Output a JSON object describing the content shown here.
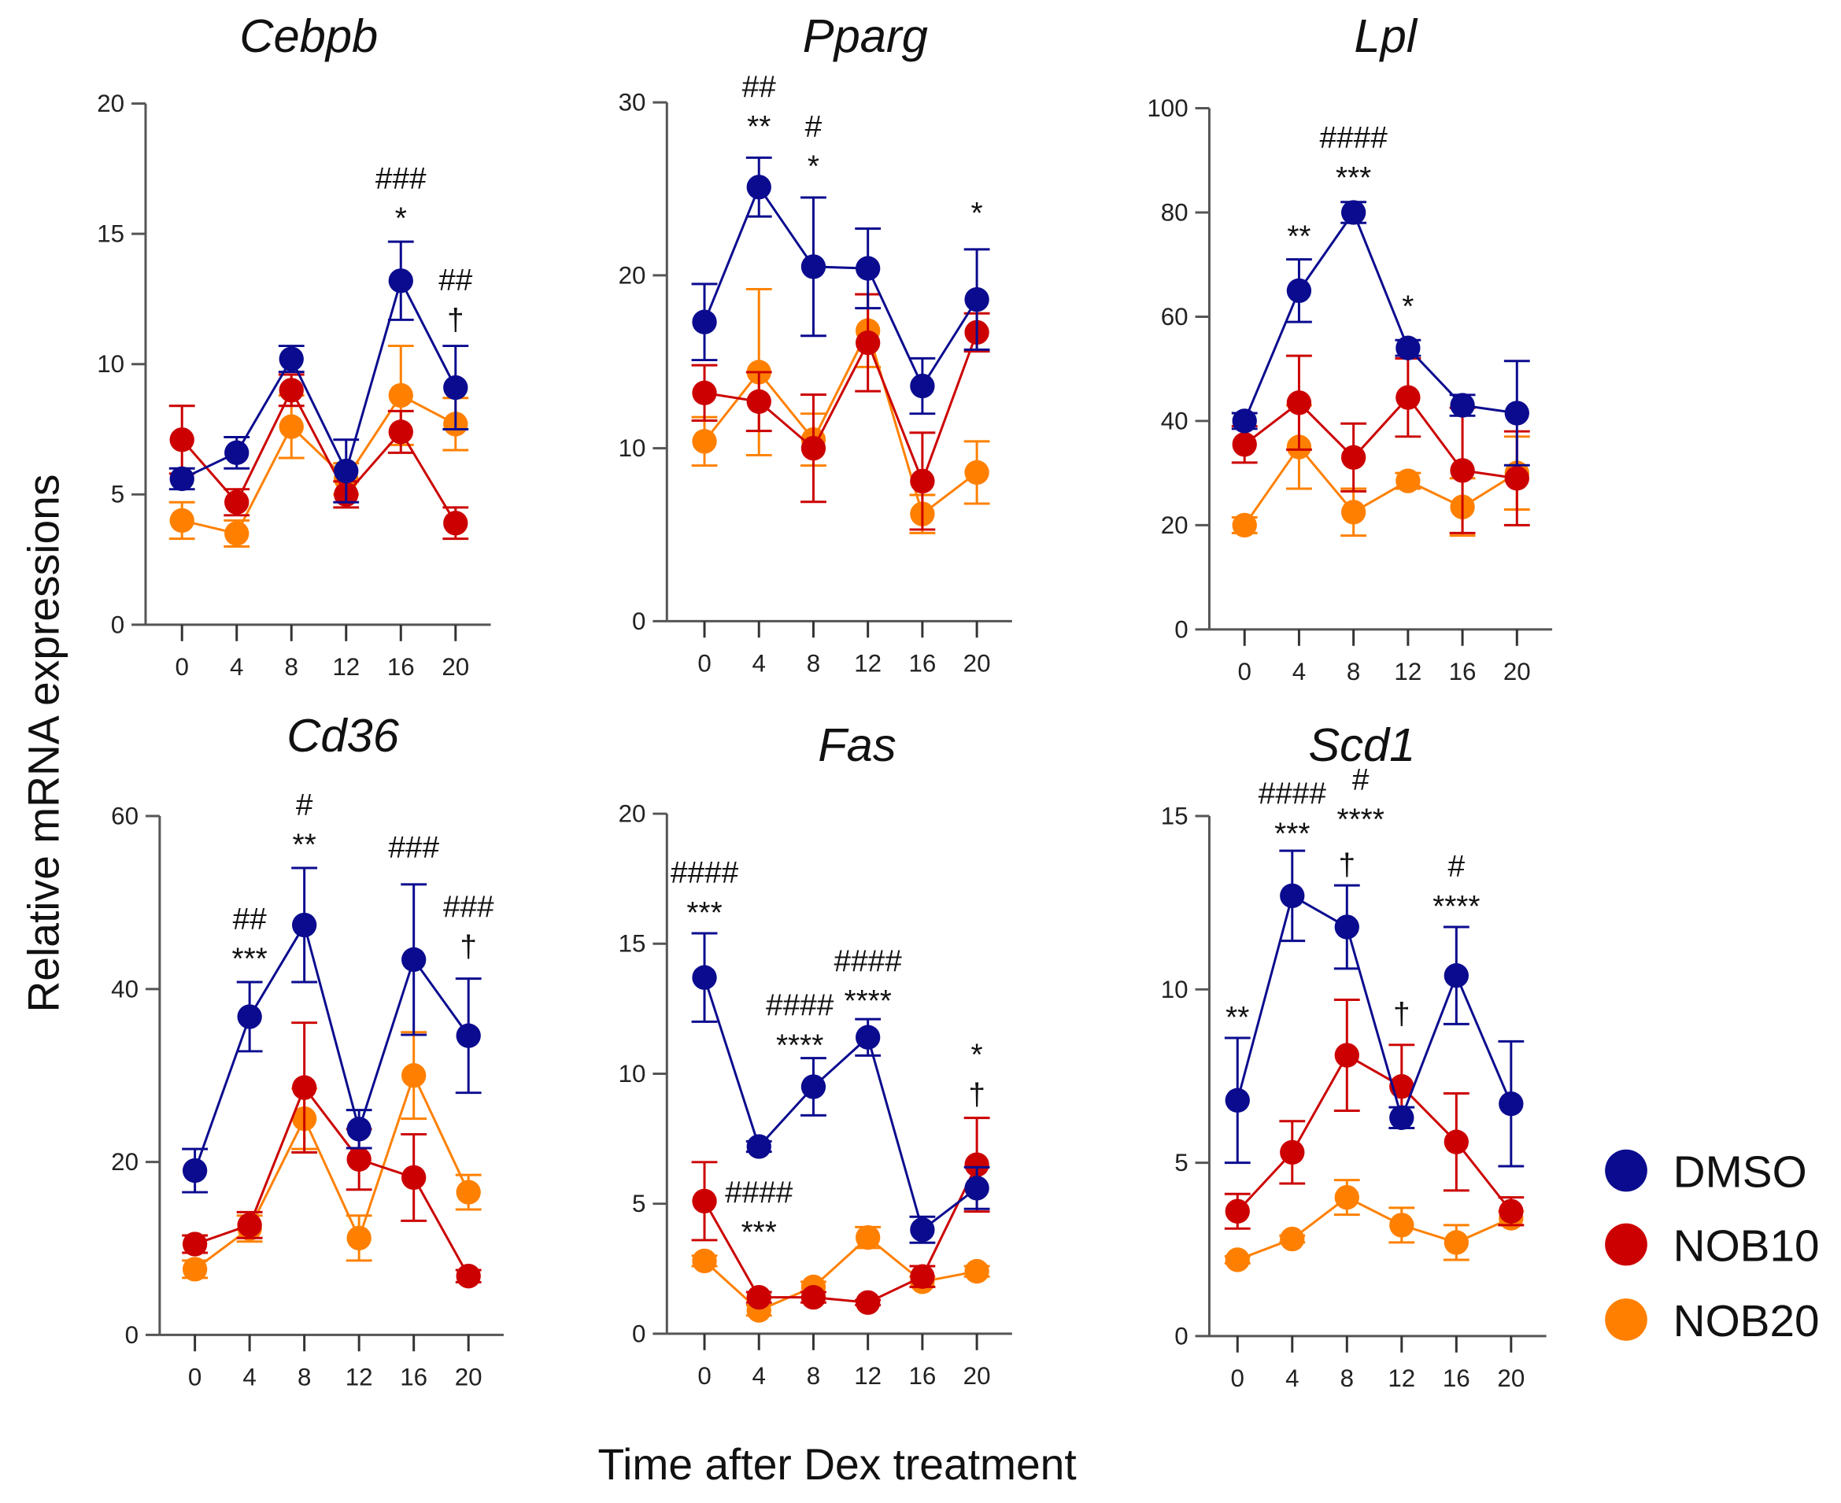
{
  "y_axis_label": "Relative mRNA expressions",
  "x_axis_label": "Time after Dex treatment",
  "legend": [
    {
      "name": "DMSO",
      "color": "#0b0b8f"
    },
    {
      "name": "NOB10",
      "color": "#cc0000"
    },
    {
      "name": "NOB20",
      "color": "#ff8000"
    }
  ],
  "chart_data": [
    {
      "type": "line",
      "title": "Cebpb",
      "x": [
        0,
        4,
        8,
        12,
        16,
        20
      ],
      "xticks": [
        "0",
        "4",
        "8",
        "12",
        "16",
        "20"
      ],
      "ylim": [
        0,
        20
      ],
      "yticks": [
        0,
        5,
        10,
        15,
        20
      ],
      "error_bars": true,
      "grid": false,
      "series": [
        {
          "name": "DMSO",
          "values": [
            5.6,
            6.6,
            10.2,
            5.9,
            13.2,
            9.1
          ],
          "errors": [
            0.4,
            0.6,
            0.5,
            1.2,
            1.5,
            1.6
          ]
        },
        {
          "name": "NOB10",
          "values": [
            7.1,
            4.7,
            9.0,
            5.0,
            7.4,
            3.9
          ],
          "errors": [
            1.3,
            0.5,
            0.6,
            0.5,
            0.8,
            0.6
          ]
        },
        {
          "name": "NOB20",
          "values": [
            4.0,
            3.5,
            7.6,
            5.6,
            8.8,
            7.7
          ],
          "errors": [
            0.7,
            0.5,
            1.2,
            0.6,
            1.9,
            1.0
          ]
        }
      ],
      "annotations": [
        {
          "t": 16,
          "y": 15.2,
          "lines": [
            "###",
            "*"
          ]
        },
        {
          "t": 20,
          "y": 11.3,
          "lines": [
            "##",
            "†"
          ]
        }
      ]
    },
    {
      "type": "line",
      "title": "Pparg",
      "x": [
        0,
        4,
        8,
        12,
        16,
        20
      ],
      "xticks": [
        "0",
        "4",
        "8",
        "12",
        "16",
        "20"
      ],
      "ylim": [
        0,
        30
      ],
      "yticks": [
        0,
        10,
        20,
        30
      ],
      "error_bars": true,
      "grid": false,
      "series": [
        {
          "name": "DMSO",
          "values": [
            17.3,
            25.1,
            20.5,
            20.4,
            13.6,
            18.6
          ],
          "errors": [
            2.2,
            1.7,
            4.0,
            2.3,
            1.6,
            2.9
          ]
        },
        {
          "name": "NOB10",
          "values": [
            13.2,
            12.7,
            10.0,
            16.1,
            8.1,
            16.7
          ],
          "errors": [
            1.6,
            1.7,
            3.1,
            2.8,
            2.8,
            1.1
          ]
        },
        {
          "name": "NOB20",
          "values": [
            10.4,
            14.4,
            10.5,
            16.8,
            6.2,
            8.6
          ],
          "errors": [
            1.4,
            4.8,
            1.5,
            2.1,
            1.1,
            1.8
          ]
        }
      ],
      "annotations": [
        {
          "t": 4,
          "y": 28.0,
          "lines": [
            "##",
            "**"
          ]
        },
        {
          "t": 8,
          "y": 25.7,
          "lines": [
            "#",
            "*"
          ]
        },
        {
          "t": 20,
          "y": 23.0,
          "lines": [
            "*"
          ]
        }
      ]
    },
    {
      "type": "line",
      "title": "Lpl",
      "x": [
        0,
        4,
        8,
        12,
        16,
        20
      ],
      "xticks": [
        "0",
        "4",
        "8",
        "12",
        "16",
        "20"
      ],
      "ylim": [
        0,
        100
      ],
      "yticks": [
        0,
        20,
        40,
        60,
        80,
        100
      ],
      "error_bars": true,
      "grid": false,
      "series": [
        {
          "name": "DMSO",
          "values": [
            40,
            65,
            80,
            54,
            43,
            41.5
          ],
          "errors": [
            1.5,
            6,
            2,
            1.5,
            2,
            10
          ]
        },
        {
          "name": "NOB10",
          "values": [
            35.5,
            43.5,
            33,
            44.5,
            30.5,
            29
          ],
          "errors": [
            3.5,
            9,
            6.5,
            7.5,
            12,
            9
          ]
        },
        {
          "name": "NOB20",
          "values": [
            20,
            35,
            22.5,
            28.5,
            23.5,
            30
          ],
          "errors": [
            1.5,
            8,
            4.5,
            1.5,
            5.5,
            7
          ]
        }
      ],
      "annotations": [
        {
          "t": 4,
          "y": 73.4,
          "lines": [
            "**"
          ]
        },
        {
          "t": 8,
          "y": 84.7,
          "lines": [
            "####",
            "***"
          ]
        },
        {
          "t": 12,
          "y": 60,
          "lines": [
            "*"
          ]
        }
      ]
    },
    {
      "type": "line",
      "title": "Cd36",
      "x": [
        0,
        4,
        8,
        12,
        16,
        20
      ],
      "xticks": [
        "0",
        "4",
        "8",
        "12",
        "16",
        "20"
      ],
      "ylim": [
        0,
        60
      ],
      "yticks": [
        0,
        20,
        40,
        60
      ],
      "error_bars": true,
      "grid": false,
      "series": [
        {
          "name": "DMSO",
          "values": [
            19.0,
            36.8,
            47.4,
            23.8,
            43.4,
            34.6
          ],
          "errors": [
            2.5,
            4,
            6.6,
            2.2,
            8.7,
            6.6
          ]
        },
        {
          "name": "NOB10",
          "values": [
            10.5,
            12.7,
            28.6,
            20.3,
            18.2,
            6.8
          ],
          "errors": [
            1,
            1.5,
            7.5,
            3.5,
            5,
            0.7
          ]
        },
        {
          "name": "NOB20",
          "values": [
            7.6,
            12.3,
            25,
            11.2,
            30,
            16.5
          ],
          "errors": [
            1,
            1.5,
            3.5,
            2.6,
            5,
            2
          ]
        }
      ],
      "annotations": [
        {
          "t": 4,
          "y": 42.3,
          "lines": [
            "##",
            "***"
          ]
        },
        {
          "t": 8,
          "y": 55.5,
          "lines": [
            "#",
            "**"
          ]
        },
        {
          "t": 16,
          "y": 55.2,
          "lines": [
            "###"
          ]
        },
        {
          "t": 20,
          "y": 43.7,
          "lines": [
            "###",
            "†"
          ]
        }
      ]
    },
    {
      "type": "line",
      "title": "Fas",
      "x": [
        0,
        4,
        8,
        12,
        16,
        20
      ],
      "xticks": [
        "0",
        "4",
        "8",
        "12",
        "16",
        "20"
      ],
      "ylim": [
        0,
        20
      ],
      "yticks": [
        0,
        5,
        10,
        15,
        20
      ],
      "error_bars": true,
      "grid": false,
      "series": [
        {
          "name": "DMSO",
          "values": [
            13.7,
            7.2,
            9.5,
            11.4,
            4.0,
            5.6
          ],
          "errors": [
            1.7,
            0.2,
            1.1,
            0.7,
            0.5,
            0.8
          ]
        },
        {
          "name": "NOB10",
          "values": [
            5.1,
            1.4,
            1.4,
            1.2,
            2.2,
            6.5
          ],
          "errors": [
            1.5,
            0.2,
            0.2,
            0.1,
            0.4,
            1.8
          ]
        },
        {
          "name": "NOB20",
          "values": [
            2.8,
            0.9,
            1.8,
            3.7,
            2.0,
            2.4
          ],
          "errors": [
            0.2,
            0.2,
            0.2,
            0.4,
            0.2,
            0.2
          ]
        }
      ],
      "annotations": [
        {
          "t": 0,
          "y": 15.8,
          "lines": [
            "####",
            "***"
          ]
        },
        {
          "t": 7,
          "y": 10.7,
          "lines": [
            "####",
            "****"
          ]
        },
        {
          "t": 12,
          "y": 12.4,
          "lines": [
            "####",
            "****"
          ]
        },
        {
          "t": 20,
          "y": 8.8,
          "lines": [
            "*",
            "†"
          ]
        },
        {
          "t": 4,
          "y": 3.5,
          "lines": [
            "####",
            "***"
          ]
        }
      ]
    },
    {
      "type": "line",
      "title": "Scd1",
      "x": [
        0,
        4,
        8,
        12,
        16,
        20
      ],
      "xticks": [
        "0",
        "4",
        "8",
        "12",
        "16",
        "20"
      ],
      "ylim": [
        0,
        15
      ],
      "yticks": [
        0,
        5,
        10,
        15
      ],
      "error_bars": true,
      "grid": false,
      "series": [
        {
          "name": "DMSO",
          "values": [
            6.8,
            12.7,
            11.8,
            6.3,
            10.4,
            6.7
          ],
          "errors": [
            1.8,
            1.3,
            1.2,
            0.3,
            1.4,
            1.8
          ]
        },
        {
          "name": "NOB10",
          "values": [
            3.6,
            5.3,
            8.1,
            7.2,
            5.6,
            3.6
          ],
          "errors": [
            0.5,
            0.9,
            1.6,
            1.2,
            1.4,
            0.4
          ]
        },
        {
          "name": "NOB20",
          "values": [
            2.2,
            2.8,
            4.0,
            3.2,
            2.7,
            3.4
          ],
          "errors": [
            0.1,
            0.1,
            0.5,
            0.5,
            0.5,
            0.2
          ]
        }
      ],
      "annotations": [
        {
          "t": 0,
          "y": 8.9,
          "lines": [
            "**"
          ]
        },
        {
          "t": 4,
          "y": 14.2,
          "lines": [
            "####",
            "***"
          ]
        },
        {
          "t": 9,
          "y": 14.6,
          "lines": [
            "#",
            "****"
          ]
        },
        {
          "t": 8,
          "y": 13.3,
          "lines": [
            "†"
          ]
        },
        {
          "t": 12,
          "y": 9.0,
          "lines": [
            "†"
          ]
        },
        {
          "t": 16,
          "y": 12.1,
          "lines": [
            "#",
            "****"
          ]
        }
      ]
    }
  ]
}
